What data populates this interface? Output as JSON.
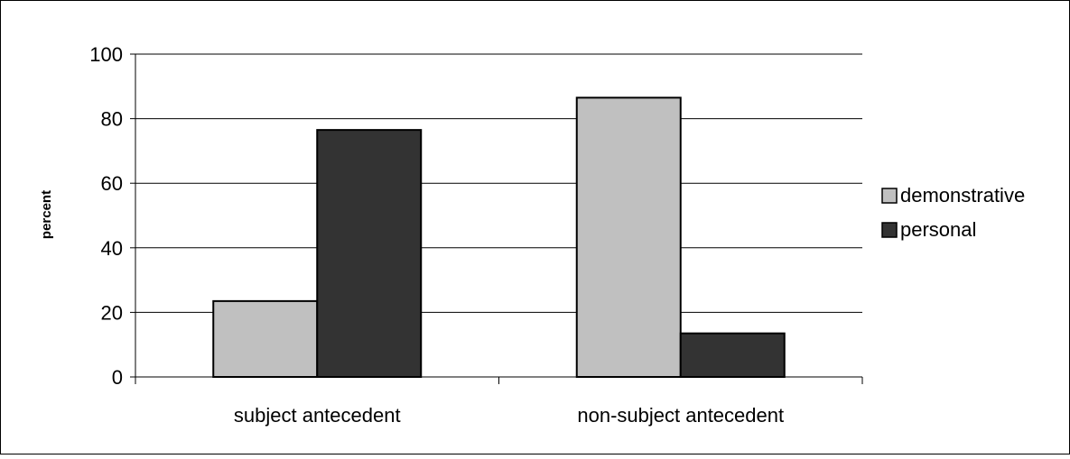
{
  "chart_data": {
    "type": "bar",
    "ylabel": "percent",
    "xlabel": "",
    "ylim": [
      0,
      100
    ],
    "yticks": [
      0,
      20,
      40,
      60,
      80,
      100
    ],
    "grid": true,
    "legend_position": "right",
    "categories": [
      "subject antecedent",
      "non-subject antecedent"
    ],
    "series": [
      {
        "name": "demonstrative",
        "values": [
          23.5,
          86.5
        ],
        "color": "#c0c0c0"
      },
      {
        "name": "personal",
        "values": [
          76.5,
          13.5
        ],
        "color": "#333333"
      }
    ]
  }
}
